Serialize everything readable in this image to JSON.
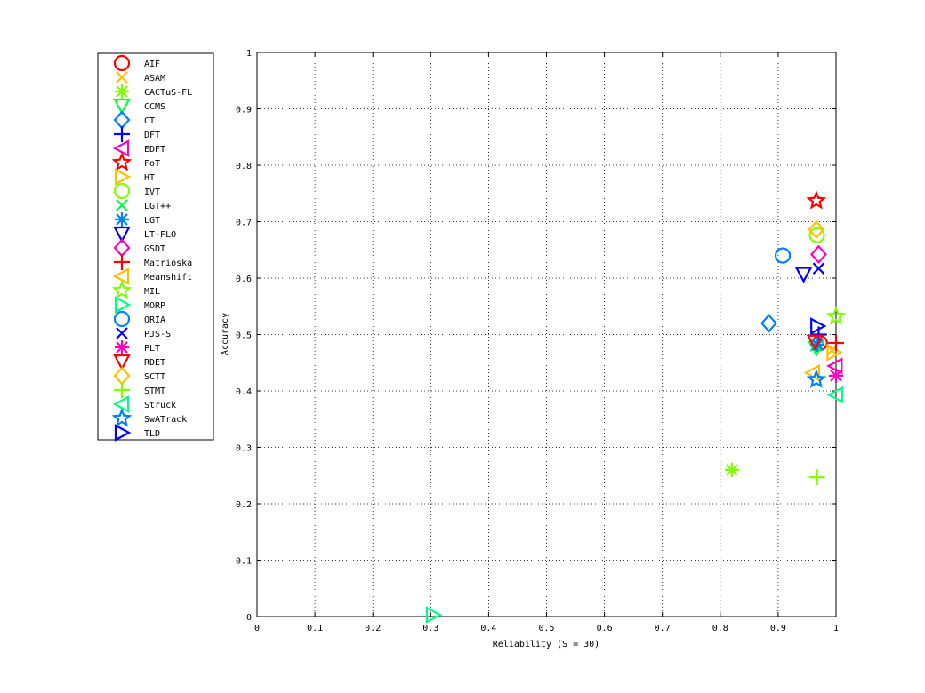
{
  "chart_data": {
    "type": "scatter",
    "title": "",
    "xlabel": "Reliability (S = 30)",
    "ylabel": "Accuracy",
    "xlim": [
      0,
      1
    ],
    "ylim": [
      0,
      1
    ],
    "xticks": [
      "0",
      "0.1",
      "0.2",
      "0.3",
      "0.4",
      "0.5",
      "0.6",
      "0.7",
      "0.8",
      "0.9",
      "1"
    ],
    "yticks": [
      "0",
      "0.1",
      "0.2",
      "0.3",
      "0.4",
      "0.5",
      "0.6",
      "0.7",
      "0.8",
      "0.9",
      "1"
    ],
    "grid": true,
    "legend_position": "outside-left-top",
    "series": [
      {
        "name": "AIF",
        "marker": "circle",
        "color": "#ff0000",
        "x": 0.972,
        "y": 0.485
      },
      {
        "name": "ASAM",
        "marker": "x",
        "color": "#ffbf00",
        "x": 0.993,
        "y": 0.472
      },
      {
        "name": "CACTuS-FL",
        "marker": "asterisk",
        "color": "#80ff00",
        "x": 0.82,
        "y": 0.26
      },
      {
        "name": "CCMS",
        "marker": "triangle-down",
        "color": "#00ff40",
        "x": 0.966,
        "y": 0.476
      },
      {
        "name": "CT",
        "marker": "diamond",
        "color": "#0080ff",
        "x": 0.884,
        "y": 0.52
      },
      {
        "name": "DFT",
        "marker": "plus",
        "color": "#0000ff",
        "x": 0.97,
        "y": 0.5
      },
      {
        "name": "EDFT",
        "marker": "triangle-left",
        "color": "#ff00bf",
        "x": 0.999,
        "y": 0.444
      },
      {
        "name": "FoT",
        "marker": "pentagram",
        "color": "#ff0000",
        "x": 0.966,
        "y": 0.737
      },
      {
        "name": "HT",
        "marker": "triangle-right",
        "color": "#ffbf00",
        "x": 0.996,
        "y": 0.468
      },
      {
        "name": "IVT",
        "marker": "circle",
        "color": "#80ff00",
        "x": 0.967,
        "y": 0.676
      },
      {
        "name": "LGT++",
        "marker": "x",
        "color": "#00ff40",
        "x": 0.965,
        "y": 0.48
      },
      {
        "name": "LGT",
        "marker": "asterisk",
        "color": "#0080ff",
        "x": 0.968,
        "y": 0.482
      },
      {
        "name": "LT-FLO",
        "marker": "triangle-down",
        "color": "#0000ff",
        "x": 0.944,
        "y": 0.607
      },
      {
        "name": "GSDT",
        "marker": "diamond",
        "color": "#ff00bf",
        "x": 0.97,
        "y": 0.642
      },
      {
        "name": "Matrioska",
        "marker": "plus",
        "color": "#ff0000",
        "x": 1.0,
        "y": 0.485
      },
      {
        "name": "Meanshift",
        "marker": "triangle-left",
        "color": "#ffbf00",
        "x": 0.96,
        "y": 0.432
      },
      {
        "name": "MIL",
        "marker": "pentagram",
        "color": "#80ff00",
        "x": 1.0,
        "y": 0.532
      },
      {
        "name": "MORP",
        "marker": "triangle-right",
        "color": "#00ff80",
        "x": 0.304,
        "y": 0.003
      },
      {
        "name": "ORIA",
        "marker": "circle",
        "color": "#0080ff",
        "x": 0.908,
        "y": 0.64
      },
      {
        "name": "PJS-S",
        "marker": "x",
        "color": "#0000ff",
        "x": 0.97,
        "y": 0.617
      },
      {
        "name": "PLT",
        "marker": "asterisk",
        "color": "#ff00bf",
        "x": 1.0,
        "y": 0.427
      },
      {
        "name": "RDET",
        "marker": "triangle-down",
        "color": "#ff0000",
        "x": 0.964,
        "y": 0.487
      },
      {
        "name": "SCTT",
        "marker": "diamond",
        "color": "#ffbf00",
        "x": 0.966,
        "y": 0.686
      },
      {
        "name": "STMT",
        "marker": "plus",
        "color": "#80ff00",
        "x": 0.967,
        "y": 0.247
      },
      {
        "name": "Struck",
        "marker": "triangle-left",
        "color": "#00ff80",
        "x": 1.0,
        "y": 0.393
      },
      {
        "name": "SwATrack",
        "marker": "pentagram",
        "color": "#0080ff",
        "x": 0.966,
        "y": 0.42
      },
      {
        "name": "TLD",
        "marker": "triangle-right",
        "color": "#0000ff",
        "x": 0.968,
        "y": 0.515
      }
    ]
  }
}
